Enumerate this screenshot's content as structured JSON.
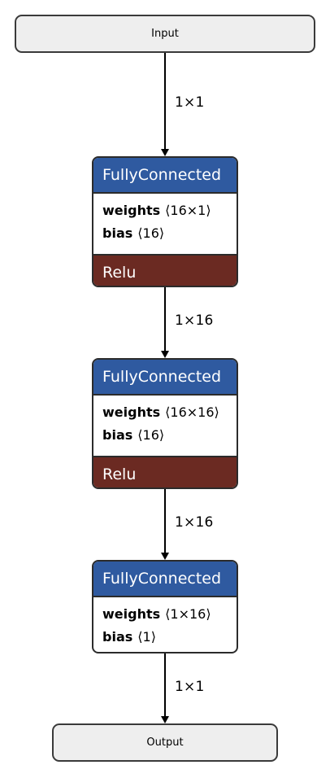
{
  "nodes": {
    "input_label": "Input",
    "output_label": "Output",
    "layers": [
      {
        "title": "FullyConnected",
        "weights_name": "weights",
        "weights_shape": "⟨16×1⟩",
        "bias_name": "bias",
        "bias_shape": "⟨16⟩",
        "activation": "Relu"
      },
      {
        "title": "FullyConnected",
        "weights_name": "weights",
        "weights_shape": "⟨16×16⟩",
        "bias_name": "bias",
        "bias_shape": "⟨16⟩",
        "activation": "Relu"
      },
      {
        "title": "FullyConnected",
        "weights_name": "weights",
        "weights_shape": "⟨1×16⟩",
        "bias_name": "bias",
        "bias_shape": "⟨1⟩"
      }
    ]
  },
  "edges": [
    {
      "label": "1×1"
    },
    {
      "label": "1×16"
    },
    {
      "label": "1×16"
    },
    {
      "label": "1×1"
    }
  ],
  "colors": {
    "layer_header": "#2f5aa0",
    "activation_band": "#6b2a22",
    "io_fill": "#eeeeee"
  }
}
